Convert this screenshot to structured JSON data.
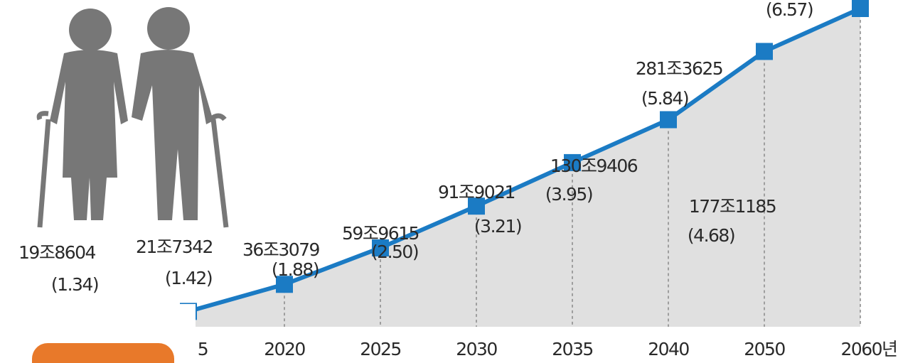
{
  "chart_data": {
    "type": "line",
    "categories": [
      null,
      "5",
      "2020",
      "2025",
      "2030",
      "2035",
      "2040",
      "2050",
      "2060년"
    ],
    "series": [
      {
        "color": "#1b7bc4",
        "values": [
          1.34,
          1.42,
          1.88,
          2.5,
          3.21,
          3.95,
          4.68,
          5.84,
          6.57
        ],
        "value_labels": [
          "(1.34)",
          "(1.42)",
          "(1.88)",
          "(2.50)",
          "(3.21)",
          "(3.95)",
          "(4.68)",
          "(5.84)",
          "(6.57)"
        ],
        "amounts": [
          "19조8604",
          "21조7342",
          "36조3079",
          "59조9615",
          "91조9021",
          "130조9406",
          "177조1185",
          "281조3625",
          null
        ]
      }
    ]
  }
}
